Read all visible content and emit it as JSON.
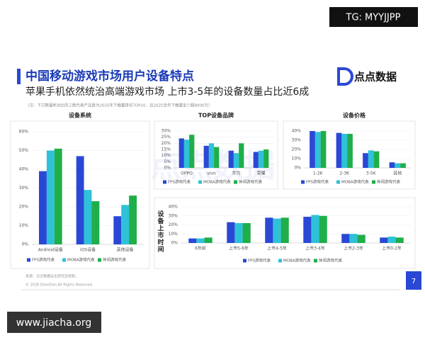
{
  "tag": "TG: MYYJJPP",
  "title": "中国移动游戏市场用户设备特点",
  "subtitle": "苹果手机依然统治高端游戏市场 上市3-5年的设备数量占比近6成",
  "note": "（注：下方数据所对比的三款代表产品皆为2025年下载量排名TOP10、且2025全年下载量至少超8000万）",
  "logo": "点点数据",
  "source": "来源：点点数据自主研究及绘制。",
  "copyright": "© 2026 DianDian.All Rights Reserved.",
  "page_number": "7",
  "site": "www.jiacha.org",
  "chart_data": [
    {
      "type": "bar",
      "title": "设备系统",
      "categories": [
        "Android设备",
        "iOS设备",
        "其他设备"
      ],
      "series": [
        {
          "name": "FPS游戏代表",
          "color": "#2a48d6",
          "values": [
            39,
            47,
            15
          ]
        },
        {
          "name": "MOBA游戏代表",
          "color": "#2ec1d8",
          "values": [
            50,
            29,
            21
          ]
        },
        {
          "name": "休闲游戏代表",
          "color": "#1fae4a",
          "values": [
            51,
            23,
            26
          ]
        }
      ],
      "ylim": [
        0,
        60
      ],
      "yticks": [
        {
          "value": 0,
          "label": "0%"
        },
        {
          "value": 10,
          "label": "10%"
        },
        {
          "value": 20,
          "label": "20%"
        },
        {
          "value": 30,
          "label": "30%"
        },
        {
          "value": 40,
          "label": "40%"
        },
        {
          "value": 50,
          "label": "50%"
        },
        {
          "value": 60,
          "label": "60%"
        }
      ]
    },
    {
      "type": "bar",
      "title": "TOP设备品牌",
      "categories": [
        "OPPO",
        "vivo",
        "华为",
        "荣耀"
      ],
      "series": [
        {
          "name": "FPS游戏代表",
          "color": "#2a48d6",
          "values": [
            24,
            18,
            14,
            13
          ]
        },
        {
          "name": "MOBA游戏代表",
          "color": "#2ec1d8",
          "values": [
            23,
            20,
            12,
            14
          ]
        },
        {
          "name": "休闲游戏代表",
          "color": "#1fae4a",
          "values": [
            27,
            17,
            20,
            15
          ]
        }
      ],
      "ylim": [
        0,
        30
      ],
      "yticks": [
        {
          "value": 0,
          "label": "0%"
        },
        {
          "value": 5,
          "label": "5%"
        },
        {
          "value": 10,
          "label": "10%"
        },
        {
          "value": 15,
          "label": "15%"
        },
        {
          "value": 20,
          "label": "20%"
        },
        {
          "value": 25,
          "label": "25%"
        },
        {
          "value": 30,
          "label": "30%"
        }
      ]
    },
    {
      "type": "bar",
      "title": "设备价格",
      "categories": [
        "1-2K",
        "2-3K",
        "3-5K",
        "其他"
      ],
      "series": [
        {
          "name": "FPS游戏代表",
          "color": "#2a48d6",
          "values": [
            40,
            38,
            16,
            6
          ]
        },
        {
          "name": "MOBA游戏代表",
          "color": "#2ec1d8",
          "values": [
            39,
            37,
            19,
            5
          ]
        },
        {
          "name": "休闲游戏代表",
          "color": "#1fae4a",
          "values": [
            40,
            37,
            18,
            5
          ]
        }
      ],
      "ylim": [
        0,
        40
      ],
      "yticks": [
        {
          "value": 0,
          "label": "0%"
        },
        {
          "value": 10,
          "label": "10%"
        },
        {
          "value": 20,
          "label": "20%"
        },
        {
          "value": 30,
          "label": "30%"
        },
        {
          "value": 40,
          "label": "40%"
        }
      ]
    },
    {
      "type": "bar",
      "title": "设备上市时间",
      "categories": [
        "6年前",
        "上市5-6年",
        "上市4-5年",
        "上市3-4年",
        "上市2-3年",
        "上市0-2年"
      ],
      "series": [
        {
          "name": "FPS游戏代表",
          "color": "#2a48d6",
          "values": [
            5,
            23,
            28,
            29,
            10,
            6
          ]
        },
        {
          "name": "MOBA游戏代表",
          "color": "#2ec1d8",
          "values": [
            5,
            22,
            27,
            31,
            10,
            7
          ]
        },
        {
          "name": "休闲游戏代表",
          "color": "#1fae4a",
          "values": [
            6,
            22,
            28,
            30,
            9,
            6
          ]
        }
      ],
      "ylim": [
        0,
        40
      ],
      "yticks": [
        {
          "value": 0,
          "label": "0%"
        },
        {
          "value": 10,
          "label": "10%"
        },
        {
          "value": 20,
          "label": "20%"
        },
        {
          "value": 30,
          "label": "30%"
        },
        {
          "value": 40,
          "label": "40%"
        }
      ]
    }
  ]
}
